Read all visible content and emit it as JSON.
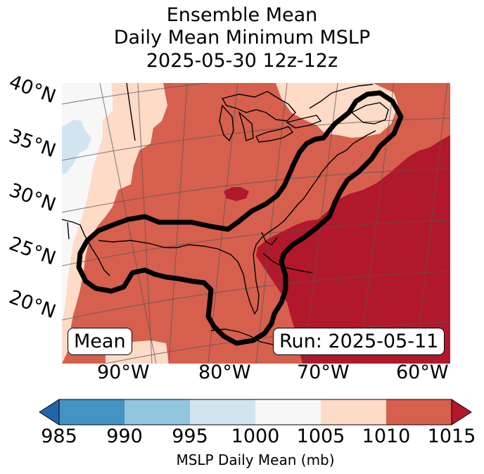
{
  "title": {
    "line1": "Ensemble Mean",
    "line2": "Daily Mean Minimum MSLP",
    "line3": "2025-05-30 12z-12z"
  },
  "map": {
    "lat_labels": [
      "40°N",
      "35°N",
      "30°N",
      "25°N",
      "20°N"
    ],
    "lon_labels": [
      "90°W",
      "80°W",
      "70°W",
      "60°W"
    ],
    "annotation_left": "Mean",
    "annotation_right": "Run: 2025-05-11",
    "colors": {
      "lt1000": "#d1e5f0",
      "b1000_1005": "#f7f7f7",
      "b1005_1010": "#fddbc7",
      "b1010_1015": "#d6604d",
      "gt1015": "#b2182b",
      "contour": "#000000",
      "coast": "#000000"
    }
  },
  "colorbar": {
    "ticks": [
      "985",
      "990",
      "995",
      "1000",
      "1005",
      "1010",
      "1015"
    ],
    "colors": [
      "#4393c3",
      "#92c5de",
      "#d1e5f0",
      "#f7f7f7",
      "#fddbc7",
      "#d6604d"
    ],
    "under_color": "#2166ac",
    "over_color": "#b2182b",
    "label": "MSLP Daily Mean (mb)"
  }
}
